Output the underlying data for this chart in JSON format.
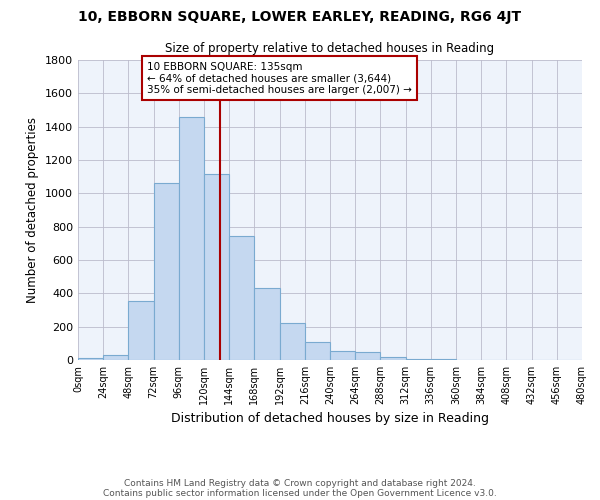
{
  "title": "10, EBBORN SQUARE, LOWER EARLEY, READING, RG6 4JT",
  "subtitle": "Size of property relative to detached houses in Reading",
  "xlabel": "Distribution of detached houses by size in Reading",
  "ylabel": "Number of detached properties",
  "bar_color": "#C5D8F0",
  "bar_edge_color": "#7AAAD0",
  "background_color": "#FFFFFF",
  "plot_bg_color": "#EEF3FB",
  "grid_color": "#BBBBCC",
  "vline_x": 135,
  "vline_color": "#AA0000",
  "annotation_text": "10 EBBORN SQUARE: 135sqm\n← 64% of detached houses are smaller (3,644)\n35% of semi-detached houses are larger (2,007) →",
  "annotation_box_color": "#FFFFFF",
  "annotation_box_edge": "#AA0000",
  "footer_line1": "Contains HM Land Registry data © Crown copyright and database right 2024.",
  "footer_line2": "Contains public sector information licensed under the Open Government Licence v3.0.",
  "bin_edges": [
    0,
    24,
    48,
    72,
    96,
    120,
    144,
    168,
    192,
    216,
    240,
    264,
    288,
    312,
    336,
    360,
    384,
    408,
    432,
    456,
    480
  ],
  "bar_heights": [
    15,
    30,
    355,
    1060,
    1460,
    1115,
    745,
    435,
    225,
    110,
    55,
    50,
    20,
    5,
    5,
    2,
    2,
    2,
    0,
    0
  ],
  "ylim": [
    0,
    1800
  ],
  "yticks": [
    0,
    200,
    400,
    600,
    800,
    1000,
    1200,
    1400,
    1600,
    1800
  ]
}
